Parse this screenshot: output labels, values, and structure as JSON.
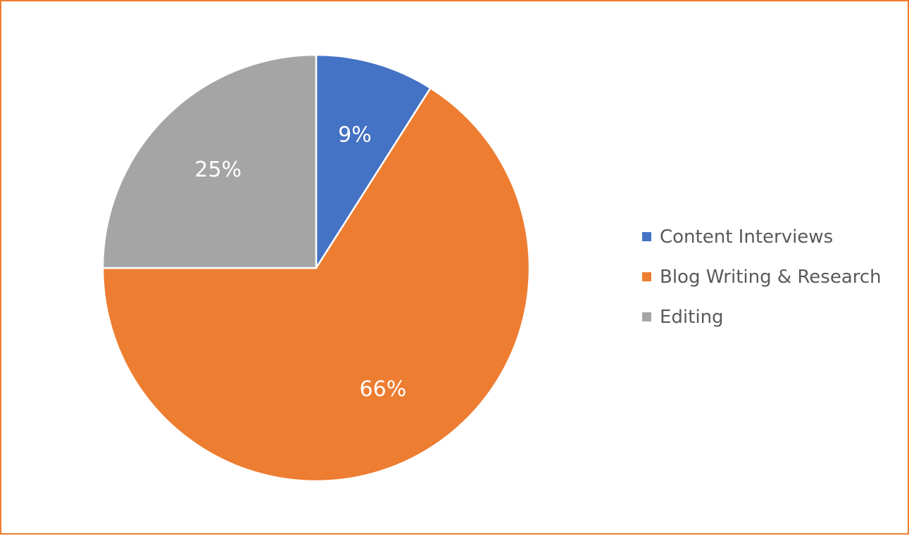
{
  "chart_data": {
    "type": "pie",
    "title": "",
    "start_angle_deg": 0,
    "direction": "clockwise",
    "legend_position": "right",
    "slices": [
      {
        "name": "Content Interviews",
        "value": 9,
        "label": "9%",
        "color": "#4472C4"
      },
      {
        "name": "Blog Writing & Research",
        "value": 66,
        "label": "66%",
        "color": "#ED7D31"
      },
      {
        "name": "Editing",
        "value": 25,
        "label": "25%",
        "color": "#A5A5A5"
      }
    ]
  },
  "colors": {
    "border": "#ED7D31",
    "label_text": "#FFFFFF",
    "legend_text": "#595959"
  }
}
